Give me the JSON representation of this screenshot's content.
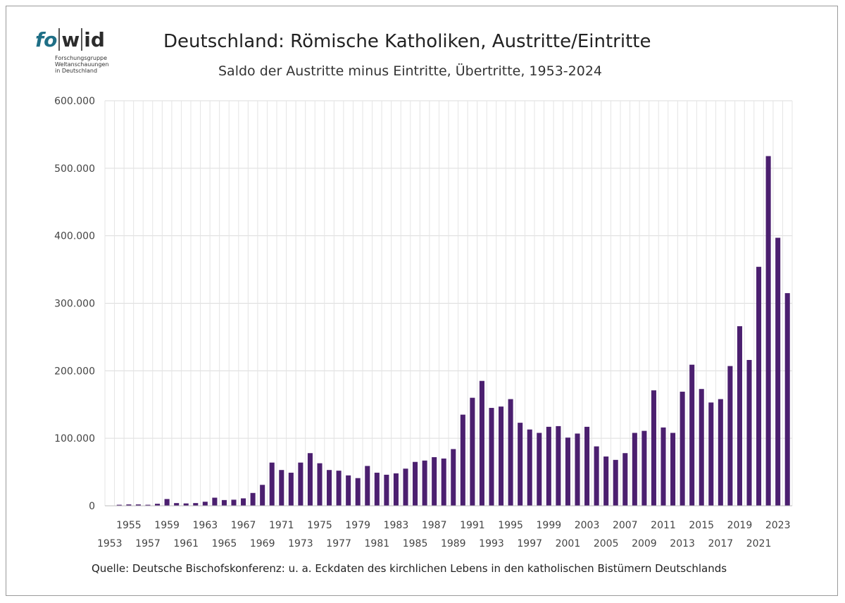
{
  "logo": {
    "text_fo": "fo",
    "text_w": "w",
    "text_id": "id",
    "subtitle_lines": [
      "Forschungsgruppe",
      "Weltanschauungen",
      "in Deutschland"
    ]
  },
  "chart_data": {
    "type": "bar",
    "title": "Deutschland: Römische Katholiken, Austritte/Eintritte",
    "subtitle": "Saldo der Austritte minus Eintritte, Übertritte, 1953-2024",
    "source": "Quelle: Deutsche Bischofskonferenz: u. a.  Eckdaten des kirchlichen Lebens in den katholischen Bistümern Deutschlands",
    "xlabel": "",
    "ylabel": "",
    "ylim": [
      0,
      600000
    ],
    "yticks": [
      0,
      100000,
      200000,
      300000,
      400000,
      500000,
      600000
    ],
    "ytick_labels": [
      "0",
      "100.000",
      "200.000",
      "300.000",
      "400.000",
      "500.000",
      "600.000"
    ],
    "grid": true,
    "bar_color": "#4b1f6f",
    "categories": [
      "1953",
      "1954",
      "1955",
      "1956",
      "1957",
      "1958",
      "1959",
      "1960",
      "1961",
      "1962",
      "1963",
      "1964",
      "1965",
      "1966",
      "1967",
      "1968",
      "1969",
      "1970",
      "1971",
      "1972",
      "1973",
      "1974",
      "1975",
      "1976",
      "1977",
      "1978",
      "1979",
      "1980",
      "1981",
      "1982",
      "1983",
      "1984",
      "1985",
      "1986",
      "1987",
      "1988",
      "1989",
      "1990",
      "1991",
      "1992",
      "1993",
      "1994",
      "1995",
      "1996",
      "1997",
      "1998",
      "1999",
      "2000",
      "2001",
      "2002",
      "2003",
      "2004",
      "2005",
      "2006",
      "2007",
      "2008",
      "2009",
      "2010",
      "2011",
      "2012",
      "2013",
      "2014",
      "2015",
      "2016",
      "2017",
      "2018",
      "2019",
      "2020",
      "2021",
      "2022",
      "2023",
      "2024"
    ],
    "values": [
      500,
      1500,
      2000,
      2000,
      1500,
      3000,
      10000,
      4000,
      3500,
      4000,
      6000,
      12000,
      8500,
      9000,
      11000,
      19000,
      31000,
      64000,
      53000,
      49000,
      64000,
      78000,
      63000,
      53000,
      52000,
      45000,
      41000,
      59000,
      49000,
      46000,
      48000,
      55000,
      65000,
      67000,
      72000,
      70000,
      84000,
      135000,
      160000,
      185000,
      145000,
      147000,
      158000,
      123000,
      113000,
      108000,
      117000,
      118000,
      101000,
      107000,
      117000,
      88000,
      73000,
      68000,
      78000,
      108000,
      111000,
      171000,
      116000,
      108000,
      169000,
      209000,
      173000,
      153000,
      158000,
      207000,
      266000,
      216000,
      354000,
      518000,
      397000,
      315000
    ],
    "xtick_top": [
      "1955",
      "1959",
      "1963",
      "1967",
      "1971",
      "1975",
      "1979",
      "1983",
      "1987",
      "1991",
      "1995",
      "1999",
      "2003",
      "2007",
      "2011",
      "2015",
      "2019",
      "2023"
    ],
    "xtick_bottom": [
      "1953",
      "1957",
      "1961",
      "1965",
      "1969",
      "1973",
      "1977",
      "1981",
      "1985",
      "1989",
      "1993",
      "1997",
      "2001",
      "2005",
      "2009",
      "2013",
      "2017",
      "2021"
    ]
  }
}
